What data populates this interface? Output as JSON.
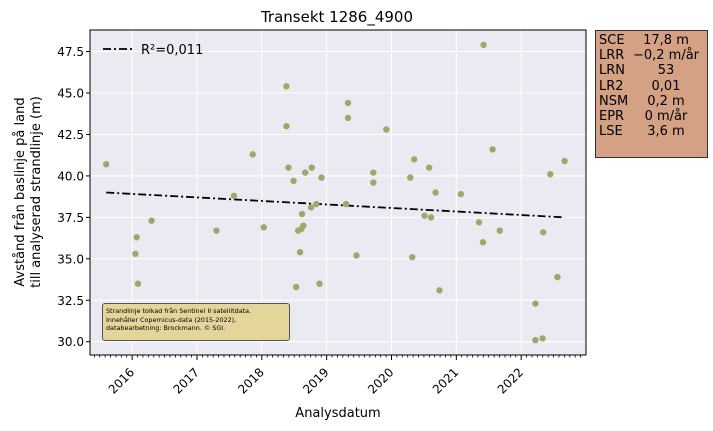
{
  "chart_data": {
    "type": "scatter",
    "title": "Transekt 1286_4900",
    "xlabel": "Analysdatum",
    "ylabel_lines": [
      "Avstånd från baslinje på land",
      "till analyserad strandlinje (m)"
    ],
    "xlim": [
      2015.35,
      2023.0
    ],
    "ylim": [
      29.2,
      48.8
    ],
    "x_ticks": [
      2016,
      2017,
      2018,
      2019,
      2020,
      2021,
      2022
    ],
    "x_tick_labels": [
      "2016",
      "2017",
      "2018",
      "2019",
      "2020",
      "2021",
      "2022"
    ],
    "y_ticks": [
      30.0,
      32.5,
      35.0,
      37.5,
      40.0,
      42.5,
      45.0,
      47.5
    ],
    "y_tick_labels": [
      "30.0",
      "32.5",
      "35.0",
      "37.5",
      "40.0",
      "42.5",
      "45.0",
      "47.5"
    ],
    "grid": true,
    "legend_position": "top-left",
    "legend_label": "R²=0,011",
    "colors": {
      "points": "#a3a66a",
      "trend": "#000000",
      "plot_bg": "#eaeaf2",
      "grid": "#ffffff"
    },
    "points": [
      {
        "x": 2015.6,
        "y": 40.7
      },
      {
        "x": 2016.07,
        "y": 36.3
      },
      {
        "x": 2016.05,
        "y": 35.3
      },
      {
        "x": 2016.09,
        "y": 33.5
      },
      {
        "x": 2016.3,
        "y": 37.3
      },
      {
        "x": 2017.3,
        "y": 36.7
      },
      {
        "x": 2017.57,
        "y": 38.8
      },
      {
        "x": 2017.86,
        "y": 41.3
      },
      {
        "x": 2018.03,
        "y": 36.9
      },
      {
        "x": 2018.38,
        "y": 45.4
      },
      {
        "x": 2018.38,
        "y": 43.0
      },
      {
        "x": 2018.41,
        "y": 40.5
      },
      {
        "x": 2018.49,
        "y": 39.7
      },
      {
        "x": 2018.53,
        "y": 33.3
      },
      {
        "x": 2018.56,
        "y": 36.7
      },
      {
        "x": 2018.59,
        "y": 35.4
      },
      {
        "x": 2018.61,
        "y": 36.8
      },
      {
        "x": 2018.62,
        "y": 37.7
      },
      {
        "x": 2018.64,
        "y": 37.0
      },
      {
        "x": 2018.67,
        "y": 40.2
      },
      {
        "x": 2018.76,
        "y": 38.1
      },
      {
        "x": 2018.77,
        "y": 40.5
      },
      {
        "x": 2018.84,
        "y": 38.3
      },
      {
        "x": 2018.89,
        "y": 33.5
      },
      {
        "x": 2018.92,
        "y": 39.9
      },
      {
        "x": 2019.3,
        "y": 38.3
      },
      {
        "x": 2019.33,
        "y": 44.4
      },
      {
        "x": 2019.33,
        "y": 43.5
      },
      {
        "x": 2019.46,
        "y": 35.2
      },
      {
        "x": 2019.72,
        "y": 40.2
      },
      {
        "x": 2019.72,
        "y": 39.6
      },
      {
        "x": 2019.92,
        "y": 42.8
      },
      {
        "x": 2020.29,
        "y": 39.9
      },
      {
        "x": 2020.32,
        "y": 35.1
      },
      {
        "x": 2020.35,
        "y": 41.0
      },
      {
        "x": 2020.51,
        "y": 37.6
      },
      {
        "x": 2020.58,
        "y": 40.5
      },
      {
        "x": 2020.61,
        "y": 37.5
      },
      {
        "x": 2020.68,
        "y": 39.0
      },
      {
        "x": 2020.74,
        "y": 33.1
      },
      {
        "x": 2021.07,
        "y": 38.9
      },
      {
        "x": 2021.35,
        "y": 37.2
      },
      {
        "x": 2021.41,
        "y": 36.0
      },
      {
        "x": 2021.42,
        "y": 47.9
      },
      {
        "x": 2021.56,
        "y": 41.6
      },
      {
        "x": 2021.67,
        "y": 36.7
      },
      {
        "x": 2022.22,
        "y": 32.3
      },
      {
        "x": 2022.22,
        "y": 30.1
      },
      {
        "x": 2022.33,
        "y": 30.2
      },
      {
        "x": 2022.34,
        "y": 36.6
      },
      {
        "x": 2022.45,
        "y": 40.1
      },
      {
        "x": 2022.56,
        "y": 33.9
      },
      {
        "x": 2022.67,
        "y": 40.9
      }
    ],
    "trend_line": [
      {
        "x": 2015.6,
        "y": 39.0
      },
      {
        "x": 2022.67,
        "y": 37.5
      }
    ]
  },
  "stats_box": {
    "rows": [
      {
        "label": "SCE",
        "value": "17,8 m"
      },
      {
        "label": "LRR",
        "value": "−0,2 m/år"
      },
      {
        "label": "LRN",
        "value": "53"
      },
      {
        "label": "LR2",
        "value": "0,01"
      },
      {
        "label": "NSM",
        "value": "0,2 m"
      },
      {
        "label": "EPR",
        "value": "0 m/år"
      },
      {
        "label": "LSE",
        "value": "3,6 m"
      }
    ]
  },
  "source_note": {
    "lines": [
      "Strandlinje tolkad från Sentinel II satellitdata.",
      "Innehåller Copernicus-data (2015-2022),",
      "databearbetning: Brockmann. © SGI."
    ]
  }
}
